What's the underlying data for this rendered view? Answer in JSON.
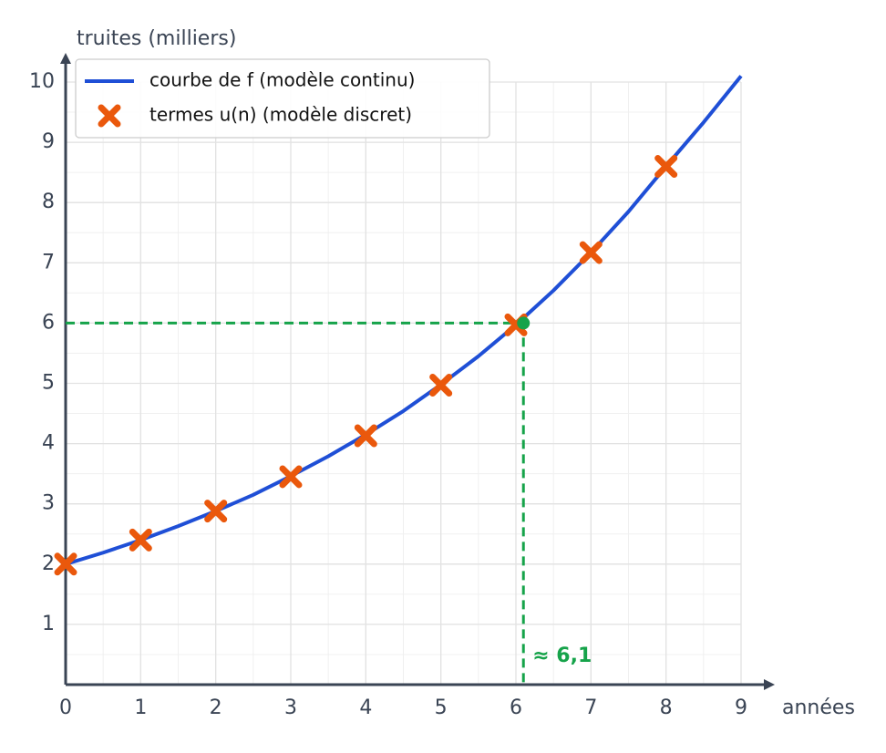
{
  "chart_data": {
    "type": "line",
    "x_label": "années",
    "y_label": "truites (milliers)",
    "xlim": [
      0,
      9
    ],
    "ylim": [
      0,
      10
    ],
    "xticks": [
      0,
      1,
      2,
      3,
      4,
      5,
      6,
      7,
      8,
      9
    ],
    "yticks": [
      1,
      2,
      3,
      4,
      5,
      6,
      7,
      8,
      9,
      10
    ],
    "grid": true,
    "legend": "upper left",
    "series": [
      {
        "name": "courbe de f (modèle continu)",
        "color": "#1f4fd6",
        "style": "line",
        "x": [
          0,
          0.5,
          1,
          1.5,
          2,
          2.5,
          3,
          3.5,
          4,
          4.5,
          5,
          5.5,
          6,
          6.5,
          7,
          7.5,
          8,
          8.5,
          9
        ],
        "values": [
          2,
          2.19,
          2.4,
          2.63,
          2.88,
          3.15,
          3.46,
          3.79,
          4.15,
          4.54,
          4.98,
          5.45,
          5.97,
          6.54,
          7.17,
          7.85,
          8.6,
          9.33,
          10.1
        ]
      },
      {
        "name": "termes u(n) (modèle discret)",
        "color": "#ea580c",
        "style": "marker",
        "x": [
          0,
          1,
          2,
          3,
          4,
          5,
          6,
          7,
          8
        ],
        "values": [
          2,
          2.4,
          2.88,
          3.45,
          4.13,
          4.97,
          5.97,
          7.17,
          8.6
        ]
      }
    ],
    "annotations": [
      {
        "text": "≈ 6,1",
        "x": 6.1,
        "y": 6,
        "color": "#16a34a"
      }
    ]
  }
}
